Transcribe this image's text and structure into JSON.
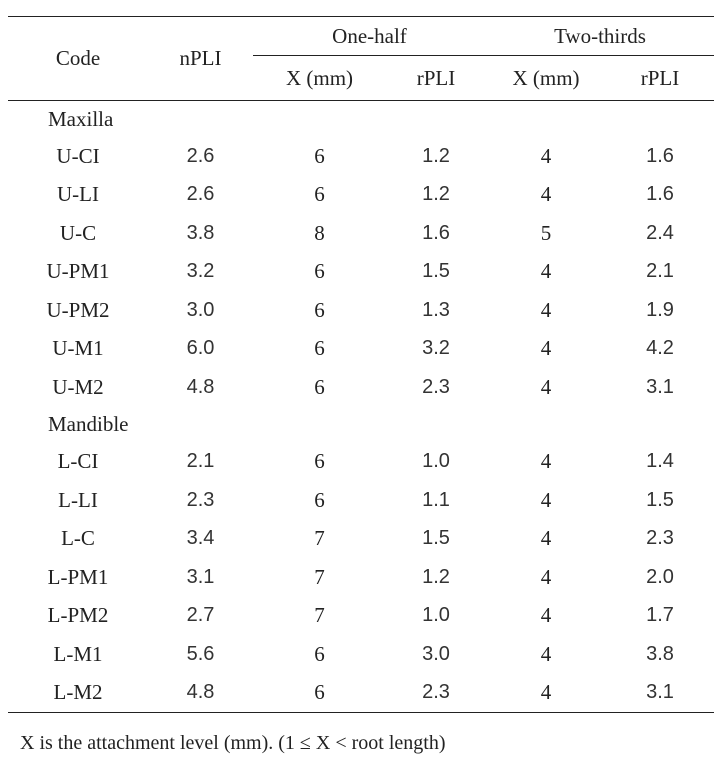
{
  "table": {
    "headers": {
      "code": "Code",
      "npli": "nPLI",
      "group1": "One-half",
      "group2": "Two-thirds",
      "x1": "X (mm)",
      "r1": "rPLI",
      "x2": "X (mm)",
      "r2": "rPLI"
    },
    "sections": [
      {
        "label": "Maxilla",
        "rows": [
          [
            "U-CI",
            "2.6",
            "6",
            "1.2",
            "4",
            "1.6"
          ],
          [
            "U-LI",
            "2.6",
            "6",
            "1.2",
            "4",
            "1.6"
          ],
          [
            "U-C",
            "3.8",
            "8",
            "1.6",
            "5",
            "2.4"
          ],
          [
            "U-PM1",
            "3.2",
            "6",
            "1.5",
            "4",
            "2.1"
          ],
          [
            "U-PM2",
            "3.0",
            "6",
            "1.3",
            "4",
            "1.9"
          ],
          [
            "U-M1",
            "6.0",
            "6",
            "3.2",
            "4",
            "4.2"
          ],
          [
            "U-M2",
            "4.8",
            "6",
            "2.3",
            "4",
            "3.1"
          ]
        ]
      },
      {
        "label": "Mandible",
        "rows": [
          [
            "L-CI",
            "2.1",
            "6",
            "1.0",
            "4",
            "1.4"
          ],
          [
            "L-LI",
            "2.3",
            "6",
            "1.1",
            "4",
            "1.5"
          ],
          [
            "L-C",
            "3.4",
            "7",
            "1.5",
            "4",
            "2.3"
          ],
          [
            "L-PM1",
            "3.1",
            "7",
            "1.2",
            "4",
            "2.0"
          ],
          [
            "L-PM2",
            "2.7",
            "7",
            "1.0",
            "4",
            "1.7"
          ],
          [
            "L-M1",
            "5.6",
            "6",
            "3.0",
            "4",
            "3.8"
          ],
          [
            "L-M2",
            "4.8",
            "6",
            "2.3",
            "4",
            "3.1"
          ]
        ]
      }
    ]
  },
  "footnote": "X is the attachment level (mm). (1 ≤ X < root length)"
}
